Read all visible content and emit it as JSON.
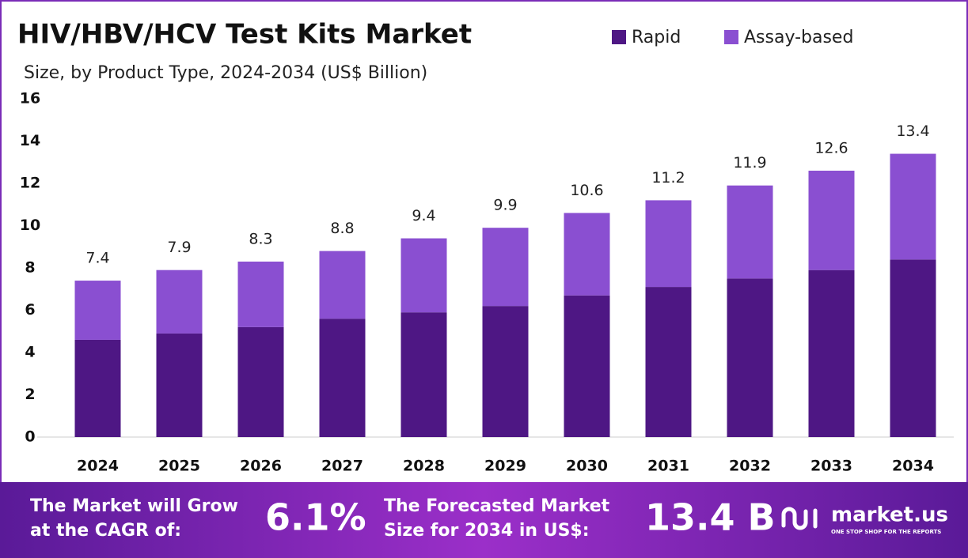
{
  "chart_data": {
    "type": "stacked_bar",
    "title": "HIV/HBV/HCV Test Kits Market",
    "subtitle": "Size, by Product Type, 2024-2034 (US$ Billion)",
    "categories": [
      "2024",
      "2025",
      "2026",
      "2027",
      "2028",
      "2029",
      "2030",
      "2031",
      "2032",
      "2033",
      "2034"
    ],
    "series": [
      {
        "name": "Rapid",
        "color": "#4e1784",
        "values": [
          4.6,
          4.9,
          5.2,
          5.6,
          5.9,
          6.2,
          6.7,
          7.1,
          7.5,
          7.9,
          8.4
        ]
      },
      {
        "name": "Assay-based",
        "color": "#8a4fd1",
        "values": [
          2.8,
          3.0,
          3.1,
          3.2,
          3.5,
          3.7,
          3.9,
          4.1,
          4.4,
          4.7,
          5.0
        ]
      }
    ],
    "totals": [
      7.4,
      7.9,
      8.3,
      8.8,
      9.4,
      9.9,
      10.6,
      11.2,
      11.9,
      12.6,
      13.4
    ],
    "ylim": [
      0,
      16
    ],
    "yticks": [
      0,
      2,
      4,
      6,
      8,
      10,
      12,
      14,
      16
    ],
    "grid": false
  },
  "footer": {
    "cagr_text": [
      "The Market will Grow",
      "at the CAGR of:"
    ],
    "cagr_value": "6.1%",
    "forecast_text": [
      "The Forecasted Market",
      "Size for 2034 in US$:"
    ],
    "forecast_value": "13.4 B",
    "brand": "market.us",
    "tagline": "ONE STOP SHOP FOR THE REPORTS"
  }
}
